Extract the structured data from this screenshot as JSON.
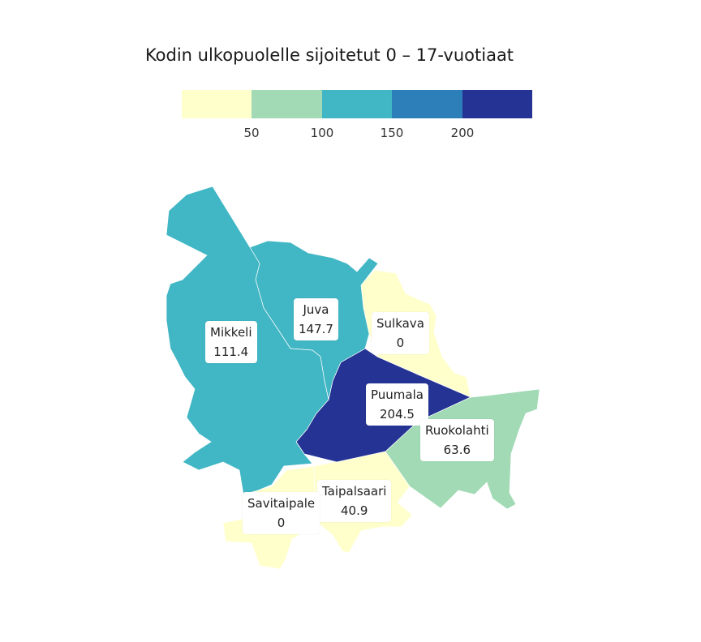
{
  "title": "Kodin ulkopuolelle sijoitetut 0 – 17-vuotiaat",
  "legend": {
    "colors": [
      "#ffffcc",
      "#a1dab4",
      "#41b6c4",
      "#2c7fb8",
      "#253494"
    ],
    "ticks": [
      "50",
      "100",
      "150",
      "200"
    ]
  },
  "map": {
    "regions": [
      {
        "name": "Mikkeli",
        "value": "111.4",
        "color": "#41b6c4"
      },
      {
        "name": "Juva",
        "value": "147.7",
        "color": "#41b6c4"
      },
      {
        "name": "Sulkava",
        "value": "0",
        "color": "#ffffcc"
      },
      {
        "name": "Puumala",
        "value": "204.5",
        "color": "#253494"
      },
      {
        "name": "Ruokolahti",
        "value": "63.6",
        "color": "#a1dab4"
      },
      {
        "name": "Taipalsaari",
        "value": "40.9",
        "color": "#ffffcc"
      },
      {
        "name": "Savitaipale",
        "value": "0",
        "color": "#ffffcc"
      }
    ]
  }
}
